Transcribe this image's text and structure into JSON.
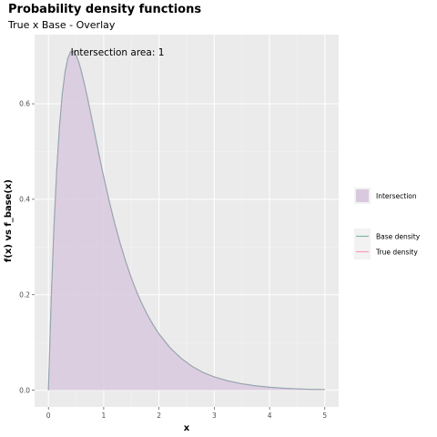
{
  "title": "Probability density functions",
  "subtitle": "True x Base - Overlay",
  "chart_data": {
    "type": "area",
    "xlabel": "x",
    "ylabel": "f(x) vs f_base(x)",
    "xlim": [
      -0.25,
      5.25
    ],
    "ylim": [
      -0.035,
      0.745
    ],
    "x_ticks": [
      0,
      1,
      2,
      3,
      4,
      5
    ],
    "x_tick_labels": [
      "0",
      "1",
      "2",
      "3",
      "4",
      "5"
    ],
    "y_ticks": [
      0.0,
      0.2,
      0.4,
      0.6
    ],
    "y_tick_labels": [
      "0.0",
      "0.2",
      "0.4",
      "0.6"
    ],
    "grid": true,
    "legend_position": "right",
    "annotation": "Intersection area:  1",
    "fill_legend": [
      {
        "name": "Intersection",
        "color": "#d9c9df"
      }
    ],
    "line_legend": [
      {
        "name": "Base density",
        "color": "#7fb5a9"
      },
      {
        "name": "True density",
        "color": "#f4a0b4"
      }
    ],
    "series": [
      {
        "name": "Base density",
        "color": "#7fb5a9",
        "x": [
          0,
          0.05,
          0.1,
          0.15,
          0.2,
          0.25,
          0.3,
          0.35,
          0.4,
          0.45,
          0.5,
          0.55,
          0.6,
          0.65,
          0.7,
          0.75,
          0.8,
          0.85,
          0.9,
          0.95,
          1.0,
          1.1,
          1.2,
          1.3,
          1.4,
          1.5,
          1.6,
          1.7,
          1.8,
          1.9,
          2.0,
          2.2,
          2.4,
          2.6,
          2.8,
          3.0,
          3.25,
          3.5,
          3.75,
          4.0,
          4.25,
          4.5,
          4.75,
          5.0
        ],
        "y": [
          0,
          0.19,
          0.341,
          0.46,
          0.552,
          0.62,
          0.666,
          0.695,
          0.709,
          0.71,
          0.702,
          0.687,
          0.666,
          0.642,
          0.616,
          0.588,
          0.56,
          0.531,
          0.502,
          0.474,
          0.447,
          0.396,
          0.349,
          0.307,
          0.269,
          0.235,
          0.205,
          0.179,
          0.156,
          0.136,
          0.118,
          0.089,
          0.067,
          0.05,
          0.037,
          0.028,
          0.0195,
          0.0135,
          0.0093,
          0.0063,
          0.0043,
          0.0029,
          0.0019,
          0.0013
        ]
      },
      {
        "name": "True density",
        "color": "#f4a0b4",
        "x": [
          0,
          0.05,
          0.1,
          0.15,
          0.2,
          0.25,
          0.3,
          0.35,
          0.4,
          0.45,
          0.5,
          0.55,
          0.6,
          0.65,
          0.7,
          0.75,
          0.8,
          0.85,
          0.9,
          0.95,
          1.0,
          1.1,
          1.2,
          1.3,
          1.4,
          1.5,
          1.6,
          1.7,
          1.8,
          1.9,
          2.0,
          2.2,
          2.4,
          2.6,
          2.8,
          3.0,
          3.25,
          3.5,
          3.75,
          4.0,
          4.25,
          4.5,
          4.75,
          5.0
        ],
        "y": [
          0,
          0.19,
          0.341,
          0.46,
          0.552,
          0.62,
          0.666,
          0.695,
          0.709,
          0.71,
          0.702,
          0.687,
          0.666,
          0.642,
          0.616,
          0.588,
          0.56,
          0.531,
          0.502,
          0.474,
          0.447,
          0.396,
          0.349,
          0.307,
          0.269,
          0.235,
          0.205,
          0.179,
          0.156,
          0.136,
          0.118,
          0.089,
          0.067,
          0.05,
          0.037,
          0.028,
          0.0195,
          0.0135,
          0.0093,
          0.0063,
          0.0043,
          0.0029,
          0.0019,
          0.0013
        ]
      }
    ]
  }
}
